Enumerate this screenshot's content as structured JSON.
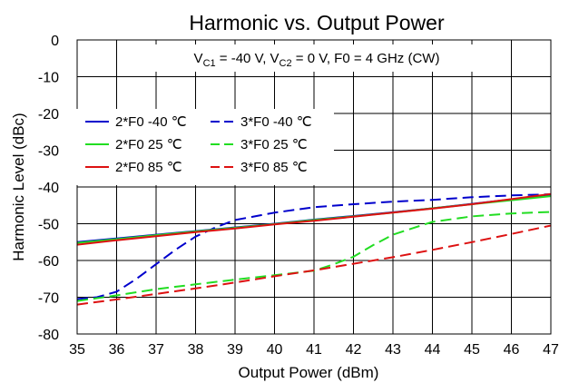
{
  "chart_data": {
    "type": "line",
    "title": "Harmonic vs. Output Power",
    "annotation": {
      "prefix": "V",
      "sub1": "C1",
      "mid": " = -40 V, V",
      "sub2": "C2",
      "suffix": " = 0 V, F0 = 4 GHz (CW)"
    },
    "xlabel": "Output Power (dBm)",
    "ylabel": "Harmonic Level (dBc)",
    "xlim": [
      35,
      47
    ],
    "ylim": [
      -80,
      0
    ],
    "xticks": [
      "35",
      "36",
      "37",
      "38",
      "39",
      "40",
      "41",
      "42",
      "43",
      "44",
      "45",
      "46",
      "47"
    ],
    "yticks": [
      "0",
      "-10",
      "-20",
      "-30",
      "-40",
      "-50",
      "-60",
      "-70",
      "-80"
    ],
    "grid": true,
    "legend_position": "upper-left",
    "series": [
      {
        "name": "2*F0 -40 ℃",
        "color": "#0000cc",
        "dash": "solid",
        "x": [
          35,
          36,
          37,
          38,
          39,
          40,
          41,
          42,
          43,
          44,
          45,
          46,
          47
        ],
        "y": [
          -55.0,
          -54.0,
          -53.0,
          -52.0,
          -51.0,
          -50.0,
          -48.9,
          -47.9,
          -46.9,
          -45.8,
          -44.6,
          -43.4,
          -42.3
        ]
      },
      {
        "name": "3*F0 -40 ℃",
        "color": "#0000cc",
        "dash": "dashed",
        "x": [
          35,
          35.5,
          36,
          36.5,
          37,
          37.5,
          38,
          38.5,
          39,
          39.5,
          40,
          41,
          42,
          43,
          44,
          45,
          46,
          47
        ],
        "y": [
          -70.5,
          -70.0,
          -68.5,
          -65.0,
          -61.0,
          -57.0,
          -53.5,
          -51.0,
          -49.0,
          -48.0,
          -47.0,
          -45.5,
          -44.7,
          -44.0,
          -43.5,
          -42.8,
          -42.3,
          -42.0
        ]
      },
      {
        "name": "2*F0  25 ℃",
        "color": "#22dd22",
        "dash": "solid",
        "x": [
          35,
          36,
          37,
          38,
          39,
          40,
          41,
          42,
          43,
          44,
          45,
          46,
          47
        ],
        "y": [
          -55.2,
          -54.2,
          -53.1,
          -52.1,
          -51.1,
          -50.1,
          -49.0,
          -48.0,
          -47.0,
          -45.8,
          -44.7,
          -43.6,
          -42.5
        ]
      },
      {
        "name": "3*F0  25 ℃",
        "color": "#22dd22",
        "dash": "dashed",
        "x": [
          35,
          36,
          37,
          38,
          39,
          40,
          41,
          41.5,
          42,
          42.5,
          43,
          43.5,
          44,
          45,
          46,
          47
        ],
        "y": [
          -71.0,
          -69.5,
          -67.8,
          -66.5,
          -65.2,
          -64.0,
          -62.8,
          -61.0,
          -59.0,
          -55.8,
          -53.0,
          -51.2,
          -49.5,
          -48.0,
          -47.2,
          -46.8
        ]
      },
      {
        "name": "2*F0  85 ℃",
        "color": "#dd1111",
        "dash": "solid",
        "x": [
          35,
          36,
          37,
          38,
          39,
          40,
          41,
          42,
          43,
          44,
          45,
          46,
          47
        ],
        "y": [
          -55.7,
          -54.5,
          -53.4,
          -52.3,
          -51.3,
          -50.2,
          -49.2,
          -48.1,
          -47.0,
          -45.9,
          -44.7,
          -43.3,
          -41.9
        ]
      },
      {
        "name": "3*F0  85 ℃",
        "color": "#dd1111",
        "dash": "dashed",
        "x": [
          35,
          36,
          37,
          38,
          39,
          40,
          41,
          42,
          43,
          44,
          45,
          46,
          47
        ],
        "y": [
          -72.0,
          -70.6,
          -69.1,
          -67.6,
          -66.0,
          -64.3,
          -62.7,
          -60.9,
          -59.1,
          -57.1,
          -55.0,
          -52.8,
          -50.5
        ]
      }
    ]
  }
}
